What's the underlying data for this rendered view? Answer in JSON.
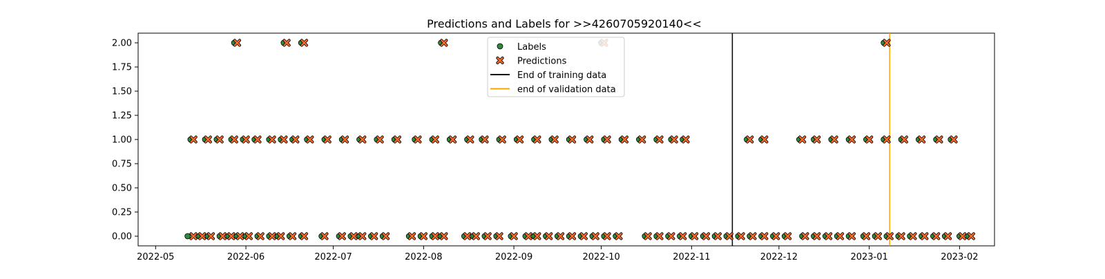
{
  "chart_data": {
    "type": "scatter",
    "title": "Predictions and Labels for >>4260705920140<<",
    "xlabel": "",
    "ylabel": "",
    "xlim": [
      "2022-04-25",
      "2023-02-13"
    ],
    "ylim": [
      -0.1,
      2.1
    ],
    "x_ticks": [
      "2022-05",
      "2022-06",
      "2022-07",
      "2022-08",
      "2022-09",
      "2022-10",
      "2022-11",
      "2022-12",
      "2023-01",
      "2023-02"
    ],
    "y_ticks": [
      "0.00",
      "0.25",
      "0.50",
      "0.75",
      "1.00",
      "1.25",
      "1.50",
      "1.75",
      "2.00"
    ],
    "grid": false,
    "legend_position": "top-center",
    "colors": {
      "labels_fill": "#2e8b3e",
      "predictions_fill": "#f06a2a",
      "training_line": "#000000",
      "validation_line": "#ffa500"
    },
    "series": [
      {
        "name": "Labels",
        "marker": "circle",
        "points": [
          [
            "2022-05-12",
            0
          ],
          [
            "2022-05-16",
            0
          ],
          [
            "2022-05-19",
            0
          ],
          [
            "2022-05-23",
            0
          ],
          [
            "2022-05-26",
            0
          ],
          [
            "2022-05-29",
            0
          ],
          [
            "2022-06-01",
            0
          ],
          [
            "2022-06-05",
            0
          ],
          [
            "2022-06-09",
            0
          ],
          [
            "2022-06-12",
            0
          ],
          [
            "2022-06-16",
            0
          ],
          [
            "2022-06-20",
            0
          ],
          [
            "2022-06-27",
            0
          ],
          [
            "2022-07-03",
            0
          ],
          [
            "2022-07-07",
            0
          ],
          [
            "2022-07-10",
            0
          ],
          [
            "2022-07-14",
            0
          ],
          [
            "2022-07-18",
            0
          ],
          [
            "2022-07-27",
            0
          ],
          [
            "2022-07-31",
            0
          ],
          [
            "2022-08-04",
            0
          ],
          [
            "2022-08-07",
            0
          ],
          [
            "2022-08-15",
            0
          ],
          [
            "2022-08-18",
            0
          ],
          [
            "2022-08-22",
            0
          ],
          [
            "2022-08-26",
            0
          ],
          [
            "2022-08-31",
            0
          ],
          [
            "2022-09-05",
            0
          ],
          [
            "2022-09-08",
            0
          ],
          [
            "2022-09-12",
            0
          ],
          [
            "2022-09-16",
            0
          ],
          [
            "2022-09-20",
            0
          ],
          [
            "2022-09-24",
            0
          ],
          [
            "2022-09-28",
            0
          ],
          [
            "2022-10-02",
            0
          ],
          [
            "2022-10-06",
            0
          ],
          [
            "2022-10-16",
            0
          ],
          [
            "2022-10-20",
            0
          ],
          [
            "2022-10-24",
            0
          ],
          [
            "2022-10-28",
            0
          ],
          [
            "2022-11-01",
            0
          ],
          [
            "2022-11-05",
            0
          ],
          [
            "2022-11-09",
            0
          ],
          [
            "2022-11-13",
            0
          ],
          [
            "2022-11-17",
            0
          ],
          [
            "2022-11-21",
            0
          ],
          [
            "2022-11-25",
            0
          ],
          [
            "2022-11-29",
            0
          ],
          [
            "2022-12-03",
            0
          ],
          [
            "2022-12-09",
            0
          ],
          [
            "2022-12-13",
            0
          ],
          [
            "2022-12-17",
            0
          ],
          [
            "2022-12-21",
            0
          ],
          [
            "2022-12-25",
            0
          ],
          [
            "2022-12-30",
            0
          ],
          [
            "2023-01-03",
            0
          ],
          [
            "2023-01-07",
            0
          ],
          [
            "2023-01-11",
            0
          ],
          [
            "2023-01-15",
            0
          ],
          [
            "2023-01-19",
            0
          ],
          [
            "2023-01-23",
            0
          ],
          [
            "2023-01-27",
            0
          ],
          [
            "2023-02-01",
            0
          ],
          [
            "2023-02-04",
            0
          ],
          [
            "2022-05-13",
            1
          ],
          [
            "2022-05-18",
            1
          ],
          [
            "2022-05-22",
            1
          ],
          [
            "2022-05-27",
            1
          ],
          [
            "2022-05-31",
            1
          ],
          [
            "2022-06-04",
            1
          ],
          [
            "2022-06-09",
            1
          ],
          [
            "2022-06-13",
            1
          ],
          [
            "2022-06-17",
            1
          ],
          [
            "2022-06-22",
            1
          ],
          [
            "2022-06-28",
            1
          ],
          [
            "2022-07-04",
            1
          ],
          [
            "2022-07-10",
            1
          ],
          [
            "2022-07-16",
            1
          ],
          [
            "2022-07-22",
            1
          ],
          [
            "2022-07-29",
            1
          ],
          [
            "2022-08-04",
            1
          ],
          [
            "2022-08-10",
            1
          ],
          [
            "2022-08-16",
            1
          ],
          [
            "2022-08-21",
            1
          ],
          [
            "2022-08-27",
            1
          ],
          [
            "2022-09-02",
            1
          ],
          [
            "2022-09-08",
            1
          ],
          [
            "2022-09-14",
            1
          ],
          [
            "2022-09-20",
            1
          ],
          [
            "2022-09-26",
            1
          ],
          [
            "2022-10-02",
            1
          ],
          [
            "2022-10-08",
            1
          ],
          [
            "2022-10-14",
            1
          ],
          [
            "2022-10-20",
            1
          ],
          [
            "2022-10-25",
            1
          ],
          [
            "2022-10-29",
            1
          ],
          [
            "2022-11-20",
            1
          ],
          [
            "2022-11-25",
            1
          ],
          [
            "2022-12-08",
            1
          ],
          [
            "2022-12-13",
            1
          ],
          [
            "2022-12-19",
            1
          ],
          [
            "2022-12-25",
            1
          ],
          [
            "2022-12-31",
            1
          ],
          [
            "2023-01-06",
            1
          ],
          [
            "2023-01-12",
            1
          ],
          [
            "2023-01-18",
            1
          ],
          [
            "2023-01-24",
            1
          ],
          [
            "2023-01-29",
            1
          ],
          [
            "2022-05-28",
            2
          ],
          [
            "2022-06-14",
            2
          ],
          [
            "2022-06-20",
            2
          ],
          [
            "2022-08-07",
            2
          ],
          [
            "2022-10-01",
            2
          ],
          [
            "2023-01-06",
            2
          ]
        ]
      },
      {
        "name": "Predictions",
        "marker": "x",
        "points": [
          [
            "2022-05-14",
            0
          ],
          [
            "2022-05-17",
            0
          ],
          [
            "2022-05-20",
            0
          ],
          [
            "2022-05-24",
            0
          ],
          [
            "2022-05-27",
            0
          ],
          [
            "2022-05-30",
            0
          ],
          [
            "2022-06-02",
            0
          ],
          [
            "2022-06-06",
            0
          ],
          [
            "2022-06-10",
            0
          ],
          [
            "2022-06-13",
            0
          ],
          [
            "2022-06-17",
            0
          ],
          [
            "2022-06-21",
            0
          ],
          [
            "2022-06-28",
            0
          ],
          [
            "2022-07-04",
            0
          ],
          [
            "2022-07-08",
            0
          ],
          [
            "2022-07-11",
            0
          ],
          [
            "2022-07-15",
            0
          ],
          [
            "2022-07-19",
            0
          ],
          [
            "2022-07-28",
            0
          ],
          [
            "2022-08-01",
            0
          ],
          [
            "2022-08-05",
            0
          ],
          [
            "2022-08-08",
            0
          ],
          [
            "2022-08-16",
            0
          ],
          [
            "2022-08-19",
            0
          ],
          [
            "2022-08-23",
            0
          ],
          [
            "2022-08-27",
            0
          ],
          [
            "2022-09-01",
            0
          ],
          [
            "2022-09-06",
            0
          ],
          [
            "2022-09-09",
            0
          ],
          [
            "2022-09-13",
            0
          ],
          [
            "2022-09-17",
            0
          ],
          [
            "2022-09-21",
            0
          ],
          [
            "2022-09-25",
            0
          ],
          [
            "2022-09-29",
            0
          ],
          [
            "2022-10-03",
            0
          ],
          [
            "2022-10-07",
            0
          ],
          [
            "2022-10-17",
            0
          ],
          [
            "2022-10-21",
            0
          ],
          [
            "2022-10-25",
            0
          ],
          [
            "2022-10-29",
            0
          ],
          [
            "2022-11-02",
            0
          ],
          [
            "2022-11-06",
            0
          ],
          [
            "2022-11-10",
            0
          ],
          [
            "2022-11-14",
            0
          ],
          [
            "2022-11-18",
            0
          ],
          [
            "2022-11-22",
            0
          ],
          [
            "2022-11-26",
            0
          ],
          [
            "2022-11-30",
            0
          ],
          [
            "2022-12-04",
            0
          ],
          [
            "2022-12-10",
            0
          ],
          [
            "2022-12-14",
            0
          ],
          [
            "2022-12-18",
            0
          ],
          [
            "2022-12-22",
            0
          ],
          [
            "2022-12-26",
            0
          ],
          [
            "2022-12-31",
            0
          ],
          [
            "2023-01-04",
            0
          ],
          [
            "2023-01-08",
            0
          ],
          [
            "2023-01-12",
            0
          ],
          [
            "2023-01-16",
            0
          ],
          [
            "2023-01-20",
            0
          ],
          [
            "2023-01-24",
            0
          ],
          [
            "2023-01-28",
            0
          ],
          [
            "2023-02-02",
            0
          ],
          [
            "2023-02-05",
            0
          ],
          [
            "2022-05-14",
            1
          ],
          [
            "2022-05-19",
            1
          ],
          [
            "2022-05-23",
            1
          ],
          [
            "2022-05-28",
            1
          ],
          [
            "2022-06-01",
            1
          ],
          [
            "2022-06-05",
            1
          ],
          [
            "2022-06-10",
            1
          ],
          [
            "2022-06-14",
            1
          ],
          [
            "2022-06-18",
            1
          ],
          [
            "2022-06-23",
            1
          ],
          [
            "2022-06-29",
            1
          ],
          [
            "2022-07-05",
            1
          ],
          [
            "2022-07-11",
            1
          ],
          [
            "2022-07-17",
            1
          ],
          [
            "2022-07-23",
            1
          ],
          [
            "2022-07-30",
            1
          ],
          [
            "2022-08-05",
            1
          ],
          [
            "2022-08-11",
            1
          ],
          [
            "2022-08-17",
            1
          ],
          [
            "2022-08-22",
            1
          ],
          [
            "2022-08-28",
            1
          ],
          [
            "2022-09-03",
            1
          ],
          [
            "2022-09-09",
            1
          ],
          [
            "2022-09-15",
            1
          ],
          [
            "2022-09-21",
            1
          ],
          [
            "2022-09-27",
            1
          ],
          [
            "2022-10-03",
            1
          ],
          [
            "2022-10-09",
            1
          ],
          [
            "2022-10-15",
            1
          ],
          [
            "2022-10-21",
            1
          ],
          [
            "2022-10-26",
            1
          ],
          [
            "2022-10-30",
            1
          ],
          [
            "2022-11-21",
            1
          ],
          [
            "2022-11-26",
            1
          ],
          [
            "2022-12-09",
            1
          ],
          [
            "2022-12-14",
            1
          ],
          [
            "2022-12-20",
            1
          ],
          [
            "2022-12-26",
            1
          ],
          [
            "2023-01-01",
            1
          ],
          [
            "2023-01-07",
            1
          ],
          [
            "2023-01-13",
            1
          ],
          [
            "2023-01-19",
            1
          ],
          [
            "2023-01-25",
            1
          ],
          [
            "2023-01-30",
            1
          ],
          [
            "2022-05-29",
            2
          ],
          [
            "2022-06-15",
            2
          ],
          [
            "2022-06-21",
            2
          ],
          [
            "2022-08-08",
            2
          ],
          [
            "2022-10-02",
            2
          ],
          [
            "2023-01-07",
            2
          ]
        ]
      }
    ],
    "vertical_lines": [
      {
        "name": "End of training data",
        "x": "2022-11-15",
        "color": "#000000"
      },
      {
        "name": "end of validation data",
        "x": "2023-01-08",
        "color": "#ffa500"
      }
    ]
  }
}
